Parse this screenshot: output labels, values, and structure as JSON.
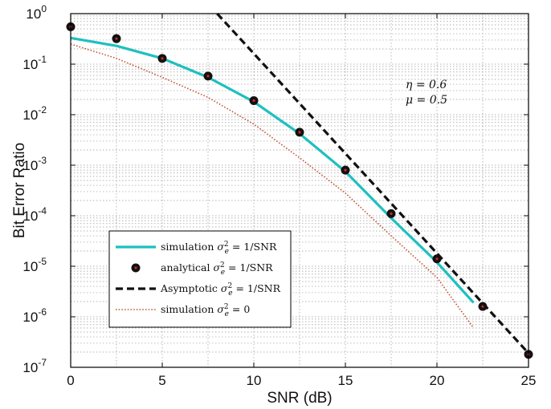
{
  "chart_data": {
    "type": "line",
    "xlabel": "SNR (dB)",
    "ylabel": "Bit Error Ratio",
    "xlim": [
      0,
      25
    ],
    "ylim": [
      1e-07,
      1
    ],
    "yscale": "log",
    "grid": true,
    "legend_position": "bottom-left",
    "x_ticks": [
      "0",
      "5",
      "10",
      "15",
      "20",
      "25"
    ],
    "y_ticks": [
      {
        "base": "10",
        "exp": "0"
      },
      {
        "base": "10",
        "exp": "-1"
      },
      {
        "base": "10",
        "exp": "-2"
      },
      {
        "base": "10",
        "exp": "-3"
      },
      {
        "base": "10",
        "exp": "-4"
      },
      {
        "base": "10",
        "exp": "-5"
      },
      {
        "base": "10",
        "exp": "-6"
      },
      {
        "base": "10",
        "exp": "-7"
      }
    ],
    "annotations": [
      "η = 0.6",
      "μ = 0.5"
    ],
    "series": [
      {
        "name": "simulation σ_e² = 1/SNR",
        "legend_main": "simulation ",
        "legend_sym": "σ",
        "legend_sub": "e",
        "legend_sup": "2",
        "legend_tail": " = 1/SNR",
        "style": "solid",
        "color": "#1fbfbf",
        "x": [
          0,
          2.5,
          5,
          7.5,
          10,
          12.5,
          15,
          17.5,
          20,
          22
        ],
        "y": [
          0.33,
          0.23,
          0.13,
          0.055,
          0.018,
          0.0042,
          0.00075,
          9e-05,
          1.2e-05,
          1.9e-06
        ]
      },
      {
        "name": "analytical σ_e² = 1/SNR",
        "legend_main": "analytical ",
        "legend_sym": "σ",
        "legend_sub": "e",
        "legend_sup": "2",
        "legend_tail": " = 1/SNR",
        "style": "markers",
        "color": "#111111",
        "marker_center": "#d0281e",
        "x": [
          0,
          2.5,
          5,
          7.5,
          10,
          12.5,
          15,
          17.5,
          20,
          22.5,
          25
        ],
        "y": [
          0.55,
          0.32,
          0.13,
          0.058,
          0.019,
          0.0045,
          0.0008,
          0.00011,
          1.4e-05,
          1.6e-06,
          1.8e-07
        ]
      },
      {
        "name": "Asymptotic σ_e² = 1/SNR",
        "legend_main": "Asymptotic ",
        "legend_sym": "σ",
        "legend_sub": "e",
        "legend_sup": "2",
        "legend_tail": " = 1/SNR",
        "style": "dashed",
        "color": "#111111",
        "x": [
          8,
          25
        ],
        "y": [
          1.0,
          1.9e-07
        ]
      },
      {
        "name": "simulation σ_e² = 0",
        "legend_main": "simulation ",
        "legend_sym": "σ",
        "legend_sub": "e",
        "legend_sup": "2",
        "legend_tail": " = 0",
        "style": "dotted",
        "color": "#c0522e",
        "x": [
          0,
          2.5,
          5,
          7.5,
          10,
          12.5,
          15,
          17.5,
          20,
          22
        ],
        "y": [
          0.25,
          0.13,
          0.055,
          0.022,
          0.0065,
          0.0014,
          0.00028,
          4e-05,
          6e-06,
          6e-07
        ]
      }
    ]
  }
}
